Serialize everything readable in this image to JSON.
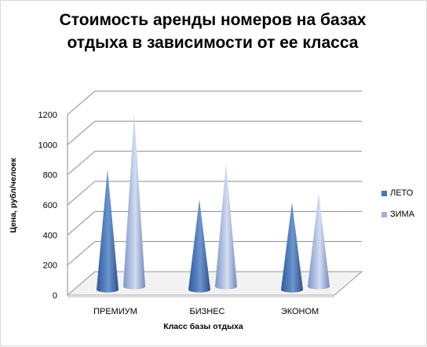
{
  "chart_data": {
    "type": "bar",
    "shape": "cone-3d",
    "title": "Стоимость аренды номеров на базах отдыха в зависимости от ее класса",
    "xlabel": "Класс базы отдыха",
    "ylabel": "Цена, рубл/челоек",
    "categories": [
      "ПРЕМИУМ",
      "БИЗНЕС",
      "ЭКОНОМ"
    ],
    "series": [
      {
        "name": "ЛЕТО",
        "values": [
          800,
          600,
          580
        ],
        "color": "#4a77b4"
      },
      {
        "name": "ЗИМА",
        "values": [
          1150,
          820,
          620
        ],
        "color": "#9fb2dc"
      }
    ],
    "ylim": [
      0,
      1200
    ],
    "yticks": [
      0,
      200,
      400,
      600,
      800,
      1000,
      1200
    ],
    "grid": true,
    "legend_position": "right"
  }
}
